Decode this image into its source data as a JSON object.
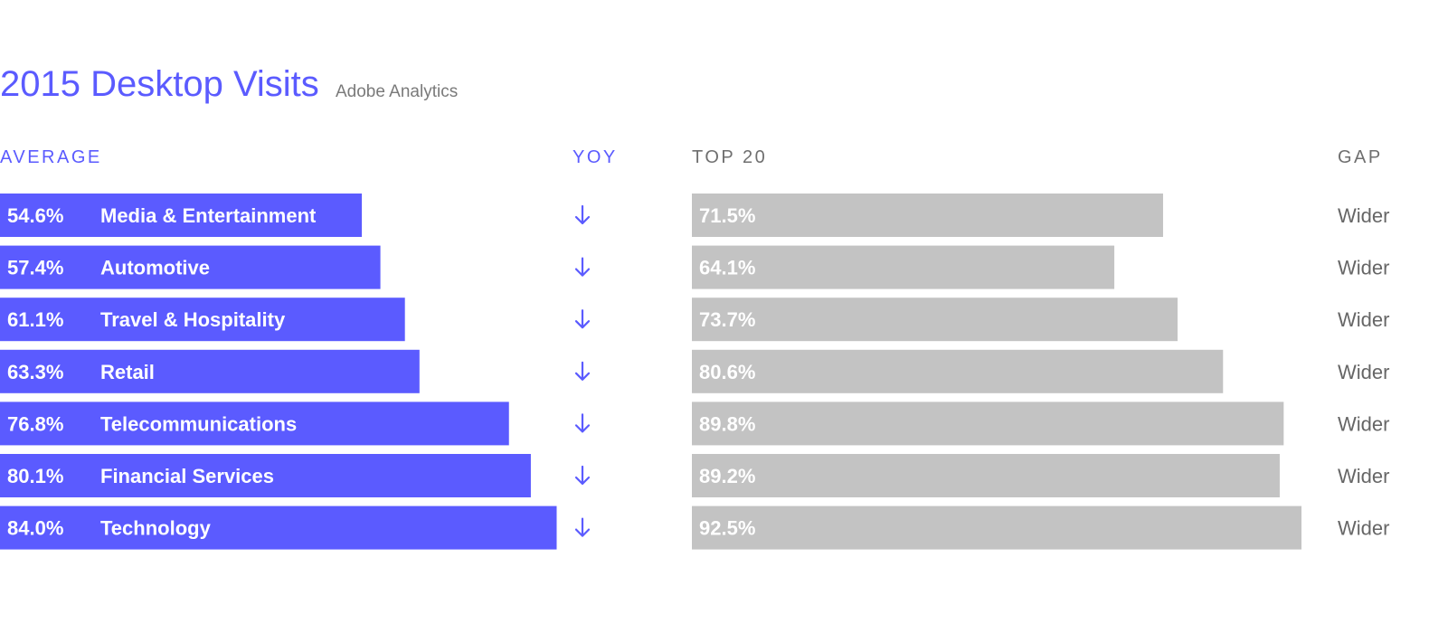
{
  "colors": {
    "accent": "#5b5bff",
    "top20_bar": "#c3c3c3",
    "subtitle": "#7a7a7a",
    "gap_text": "#666666",
    "top20_header": "#6f6f6f"
  },
  "header": {
    "title": "2015 Desktop Visits",
    "subtitle": "Adobe Analytics"
  },
  "columns": {
    "average": "AVERAGE",
    "yoy": "YOY",
    "top20": "TOP 20",
    "gap": "GAP"
  },
  "yoy_icon": "arrow-down-icon",
  "chart_data": {
    "type": "bar",
    "title": "2015 Desktop Visits",
    "subtitle": "Adobe Analytics",
    "categories": [
      "Media & Entertainment",
      "Automotive",
      "Travel & Hospitality",
      "Retail",
      "Telecommunications",
      "Financial Services",
      "Technology"
    ],
    "series": [
      {
        "name": "AVERAGE",
        "values": [
          54.6,
          57.4,
          61.1,
          63.3,
          76.8,
          80.1,
          84.0
        ],
        "labels": [
          "54.6%",
          "57.4%",
          "61.1%",
          "63.3%",
          "76.8%",
          "80.1%",
          "84.0%"
        ]
      },
      {
        "name": "TOP 20",
        "values": [
          71.5,
          64.1,
          73.7,
          80.6,
          89.8,
          89.2,
          92.5
        ],
        "labels": [
          "71.5%",
          "64.1%",
          "73.7%",
          "80.6%",
          "89.8%",
          "89.2%",
          "92.5%"
        ]
      }
    ],
    "yoy": [
      "down",
      "down",
      "down",
      "down",
      "down",
      "down",
      "down"
    ],
    "gap": [
      "Wider",
      "Wider",
      "Wider",
      "Wider",
      "Wider",
      "Wider",
      "Wider"
    ],
    "xlim": [
      0,
      100
    ],
    "grid": false,
    "legend": "none"
  }
}
